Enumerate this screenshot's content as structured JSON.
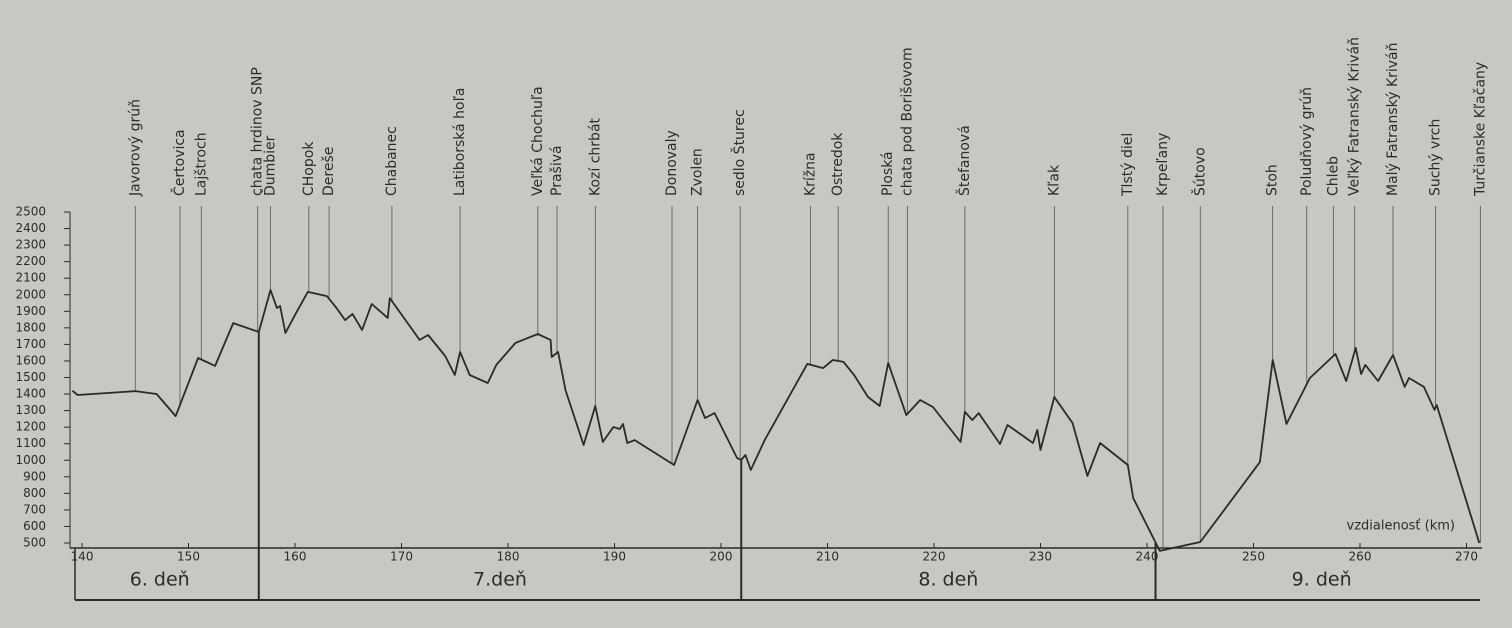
{
  "chart_data": {
    "type": "line",
    "x_label": "vzdialenosť (km)",
    "x": [
      139.1,
      139.6,
      145.0,
      147.0,
      148.8,
      150.9,
      152.5,
      154.2,
      156.6,
      157.7,
      158.3,
      158.6,
      159.1,
      160.0,
      161.2,
      163.0,
      163.9,
      164.7,
      165.4,
      166.3,
      167.2,
      168.7,
      168.9,
      171.7,
      172.5,
      174.1,
      175.0,
      175.5,
      176.4,
      178.1,
      178.9,
      180.7,
      182.8,
      184.0,
      184.1,
      184.7,
      185.4,
      187.1,
      188.2,
      188.9,
      189.9,
      190.5,
      190.8,
      191.2,
      191.9,
      195.6,
      197.8,
      198.5,
      199.4,
      201.5,
      201.9,
      202.3,
      202.8,
      204.1,
      208.1,
      209.6,
      210.5,
      211.5,
      212.5,
      213.8,
      214.9,
      215.7,
      217.4,
      218.7,
      219.9,
      222.5,
      222.9,
      223.6,
      224.2,
      225.1,
      226.2,
      226.9,
      229.3,
      229.7,
      230.0,
      231.3,
      233.0,
      234.4,
      235.6,
      238.2,
      238.7,
      241.2,
      245.0,
      250.6,
      251.8,
      253.1,
      255.3,
      257.7,
      258.7,
      259.6,
      260.1,
      260.5,
      261.7,
      263.1,
      264.2,
      264.6,
      266.0,
      267.0,
      267.2,
      271.2
    ],
    "series": [
      {
        "color": "#2a2a2a",
        "values": [
          1420,
          1394,
          1418,
          1400,
          1267,
          1618,
          1570,
          1829,
          1775,
          2029,
          1920,
          1932,
          1769,
          1878,
          2017,
          1992,
          1920,
          1847,
          1884,
          1787,
          1944,
          1860,
          1980,
          1727,
          1757,
          1630,
          1515,
          1654,
          1515,
          1467,
          1576,
          1709,
          1763,
          1727,
          1624,
          1654,
          1424,
          1092,
          1328,
          1110,
          1201,
          1189,
          1219,
          1104,
          1122,
          971,
          1364,
          1255,
          1285,
          1014,
          1002,
          1032,
          941,
          1122,
          1582,
          1557,
          1606,
          1594,
          1515,
          1382,
          1328,
          1588,
          1273,
          1364,
          1322,
          1110,
          1292,
          1243,
          1285,
          1201,
          1098,
          1213,
          1104,
          1183,
          1062,
          1382,
          1225,
          905,
          1104,
          971,
          772,
          452,
          506,
          989,
          1606,
          1219,
          1497,
          1642,
          1479,
          1679,
          1521,
          1576,
          1479,
          1636,
          1443,
          1497,
          1443,
          1304,
          1334,
          500
        ]
      }
    ],
    "xlim": [
      138,
      272
    ],
    "xticks": [
      140,
      150,
      160,
      170,
      180,
      190,
      200,
      210,
      220,
      230,
      240,
      250,
      260,
      270
    ],
    "ylim": [
      500,
      2500
    ],
    "yticks": [
      500,
      600,
      700,
      800,
      900,
      1000,
      1100,
      1200,
      1300,
      1400,
      1500,
      1600,
      1700,
      1800,
      1900,
      2000,
      2100,
      2200,
      2300,
      2400,
      2500
    ],
    "landmarks": [
      {
        "label": "Javorový grúň",
        "x": 145.0
      },
      {
        "label": "Čertovica",
        "x": 149.2
      },
      {
        "label": "Lajštroch",
        "x": 151.2
      },
      {
        "label": "chata hrdinov SNP",
        "x": 156.5
      },
      {
        "label": "Ďumbier",
        "x": 157.7
      },
      {
        "label": "CHopok",
        "x": 161.3
      },
      {
        "label": "Dereše",
        "x": 163.2
      },
      {
        "label": "Chabanec",
        "x": 169.1
      },
      {
        "label": "Latiborská hoľa",
        "x": 175.5
      },
      {
        "label": "Veľká Chochuľa",
        "x": 182.8
      },
      {
        "label": "Prašivá",
        "x": 184.6
      },
      {
        "label": "Kozí chrbát",
        "x": 188.2
      },
      {
        "label": "Donovaly",
        "x": 195.4
      },
      {
        "label": "Zvolen",
        "x": 197.8
      },
      {
        "label": "sedlo Šturec",
        "x": 201.8
      },
      {
        "label": "Krížna",
        "x": 208.4
      },
      {
        "label": "Ostredok",
        "x": 211.0
      },
      {
        "label": "Ploská",
        "x": 215.7
      },
      {
        "label": "chata pod Borišovom",
        "x": 217.5
      },
      {
        "label": "Štefanová",
        "x": 222.9
      },
      {
        "label": "Kľak",
        "x": 231.3
      },
      {
        "label": "Tlstý diel",
        "x": 238.2
      },
      {
        "label": "Krpeľany",
        "x": 241.5
      },
      {
        "label": "Šútovo",
        "x": 245.0
      },
      {
        "label": "Stoh",
        "x": 251.8
      },
      {
        "label": "Poludňový grúň",
        "x": 255.0
      },
      {
        "label": "Chleb",
        "x": 257.5
      },
      {
        "label": "Veľký Fatranský Kriváň",
        "x": 259.5
      },
      {
        "label": "Malý Fatranský Kriváň",
        "x": 263.1
      },
      {
        "label": "Suchý vrch",
        "x": 267.1
      },
      {
        "label": "Turčianske Kľačany",
        "x": 271.3
      }
    ],
    "days": [
      "6. deň",
      "7.deň",
      "8. deň",
      "9. deň"
    ],
    "day_bounds": [
      156.6,
      201.9,
      240.8
    ]
  }
}
